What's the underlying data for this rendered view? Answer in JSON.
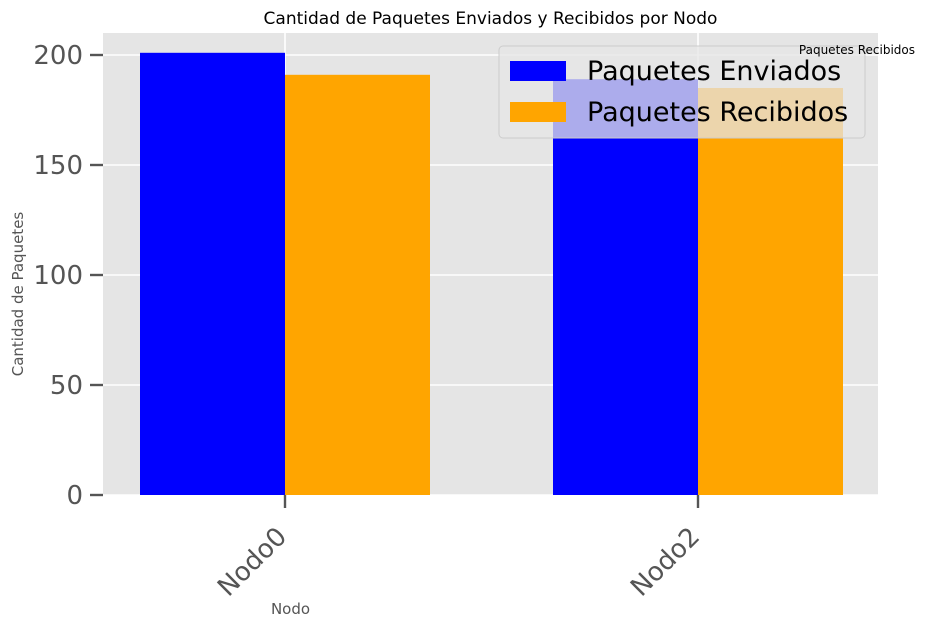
{
  "chart_data": {
    "type": "bar",
    "title": "Cantidad de Paquetes Enviados y Recibidos por Nodo",
    "xlabel": "Nodo",
    "ylabel": "Cantidad de Paquetes",
    "categories": [
      "Nodo0",
      "Nodo2"
    ],
    "series": [
      {
        "name": "Paquetes Enviados",
        "values": [
          201,
          189
        ],
        "color": "#0000ff"
      },
      {
        "name": "Paquetes Recibidos",
        "values": [
          191,
          185
        ],
        "color": "#ffa500"
      }
    ],
    "ylim": [
      0,
      210
    ],
    "yticks": [
      0,
      50,
      100,
      150,
      200
    ],
    "grid": true,
    "legend_position": "top-right",
    "annotation": "Paquetes Recibidos",
    "colors": {
      "background": "#e5e5e5",
      "grid": "#ffffff",
      "tick_text": "#555555",
      "title_text": "#000000"
    }
  }
}
